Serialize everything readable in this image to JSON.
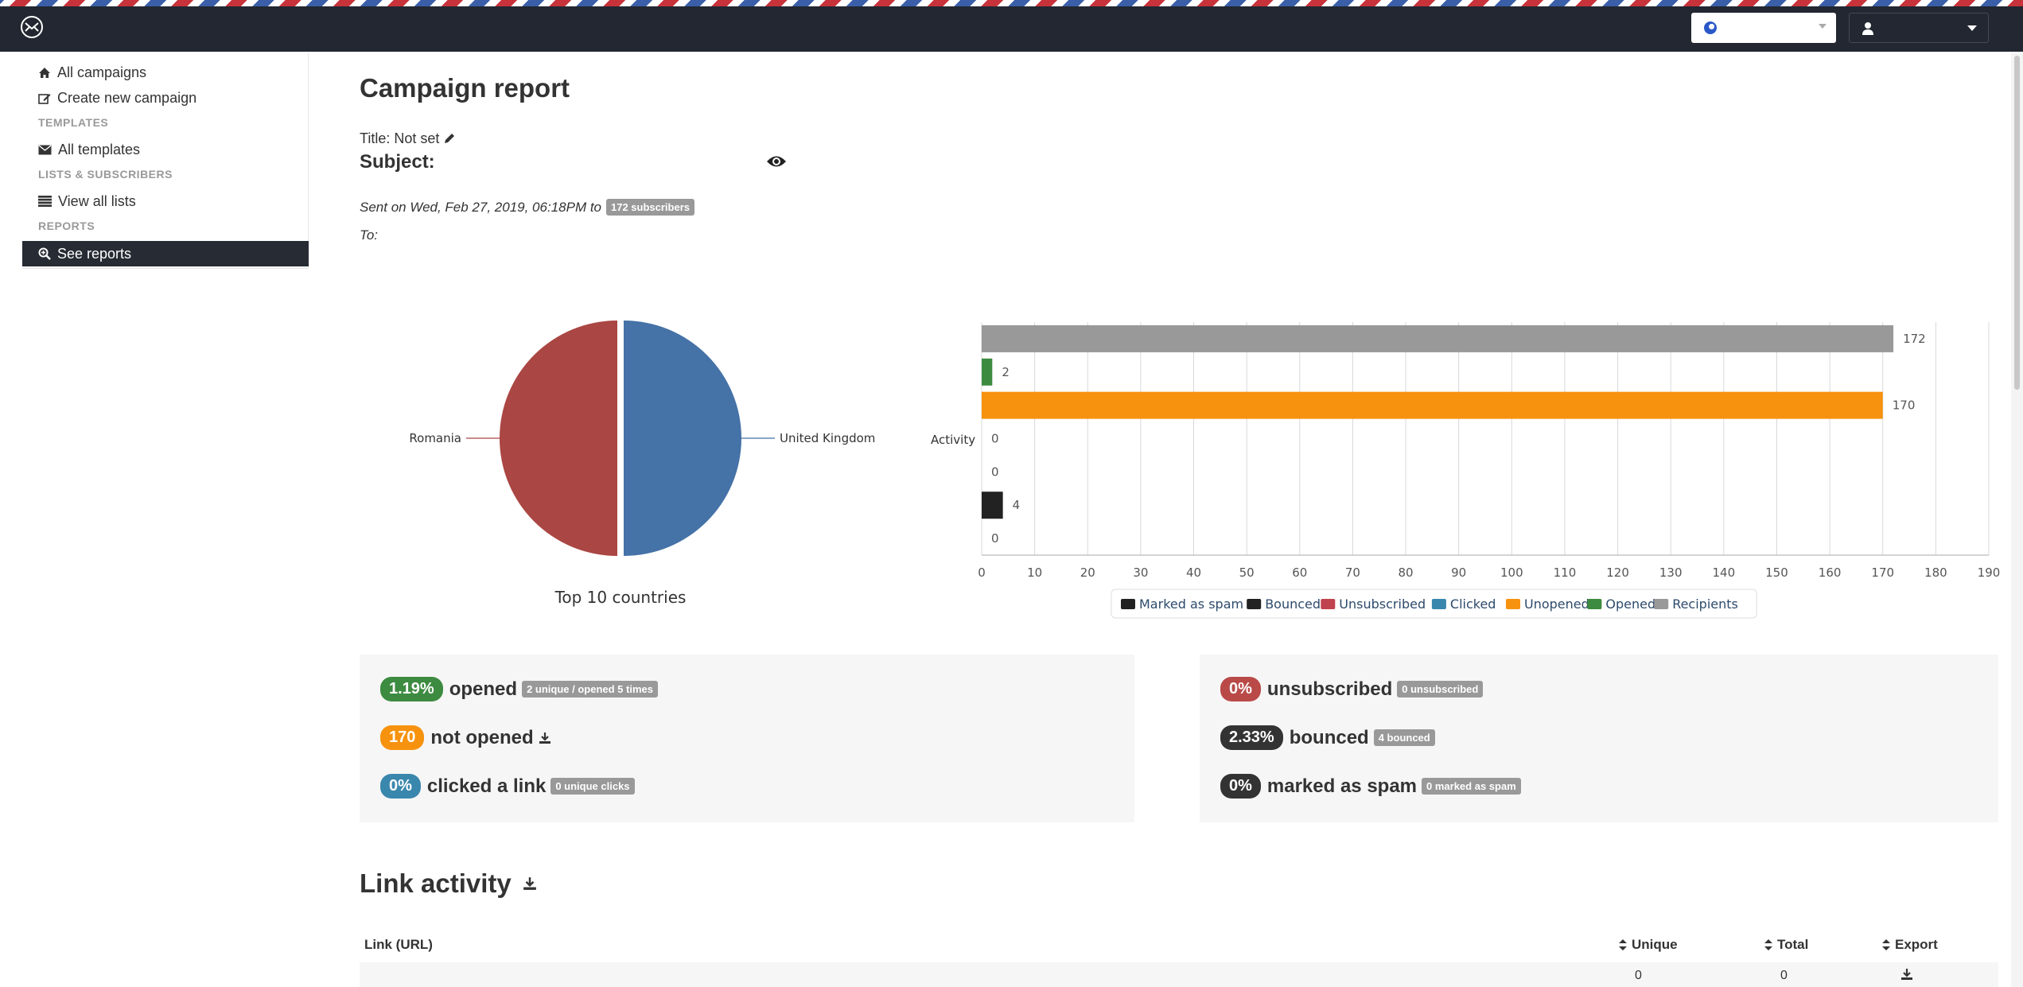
{
  "sidebar": {
    "items": [
      {
        "label": "All campaigns",
        "icon": "home-icon"
      },
      {
        "label": "Create new campaign",
        "icon": "edit-icon"
      },
      {
        "label": "All templates",
        "icon": "envelope-icon"
      },
      {
        "label": "View all lists",
        "icon": "list-icon"
      },
      {
        "label": "See reports",
        "icon": "search-icon"
      }
    ],
    "headers": [
      "TEMPLATES",
      "LISTS & SUBSCRIBERS",
      "REPORTS"
    ]
  },
  "report": {
    "page_title": "Campaign report",
    "title_text": "Title: Not set",
    "subject_label": "Subject:",
    "sent_text": "Sent on Wed, Feb 27, 2019, 06:18PM to",
    "subscribers_badge": "172 subscribers",
    "to_label": "To:"
  },
  "chart_data": [
    {
      "type": "pie",
      "title": "Top 10 countries",
      "labels": [
        "United Kingdom",
        "Romania"
      ],
      "values": [
        1,
        1
      ],
      "colors": [
        "#4572a7",
        "#aa4643"
      ]
    },
    {
      "type": "bar",
      "orientation": "horizontal",
      "categories": [
        "Activity"
      ],
      "series": [
        {
          "name": "Recipients",
          "values": [
            172
          ],
          "color": "#999999"
        },
        {
          "name": "Opened",
          "values": [
            2
          ],
          "color": "#3d8b40"
        },
        {
          "name": "Unopened",
          "values": [
            170
          ],
          "color": "#f7920f"
        },
        {
          "name": "Clicked",
          "values": [
            0
          ],
          "color": "#3a87ad"
        },
        {
          "name": "Unsubscribed",
          "values": [
            0
          ],
          "color": "#c0424e"
        },
        {
          "name": "Bounced",
          "values": [
            4
          ],
          "color": "#222222"
        },
        {
          "name": "Marked as spam",
          "values": [
            0
          ],
          "color": "#222222"
        }
      ],
      "xlim": [
        0,
        190
      ],
      "xticks": [
        0,
        10,
        20,
        30,
        40,
        50,
        60,
        70,
        80,
        90,
        100,
        110,
        120,
        130,
        140,
        150,
        160,
        170,
        180,
        190
      ],
      "ylabel": "Activity",
      "legend": [
        "Marked as spam",
        "Bounced",
        "Unsubscribed",
        "Clicked",
        "Unopened",
        "Opened",
        "Recipients"
      ],
      "legend_placement": "bottom",
      "grid": true
    }
  ],
  "stats": {
    "left": [
      {
        "value": "1.19%",
        "label": "opened",
        "badge": "2 unique / opened 5 times",
        "color": "#3d8b40"
      },
      {
        "value": "170",
        "label": "not opened",
        "badge": "",
        "color": "#f7920f"
      },
      {
        "value": "0%",
        "label": "clicked a link",
        "badge": "0 unique clicks",
        "color": "#3a87ad"
      }
    ],
    "right": [
      {
        "value": "0%",
        "label": "unsubscribed",
        "badge": "0 unsubscribed",
        "color": "#b94a48"
      },
      {
        "value": "2.33%",
        "label": "bounced",
        "badge": "4 bounced",
        "color": "#333333"
      },
      {
        "value": "0%",
        "label": "marked as spam",
        "badge": "0 marked as spam",
        "color": "#333333"
      }
    ]
  },
  "link_activity": {
    "title": "Link activity",
    "columns": [
      "Link (URL)",
      "Unique",
      "Total",
      "Export"
    ],
    "rows": [
      {
        "url": "",
        "unique": "0",
        "total": "0"
      }
    ]
  }
}
